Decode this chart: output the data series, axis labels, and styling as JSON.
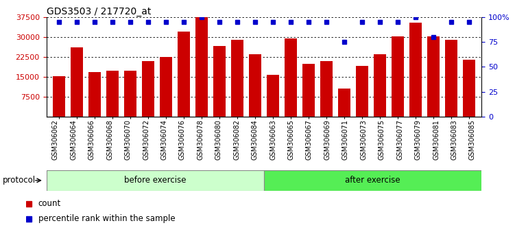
{
  "title": "GDS3503 / 217720_at",
  "categories": [
    "GSM306062",
    "GSM306064",
    "GSM306066",
    "GSM306068",
    "GSM306070",
    "GSM306072",
    "GSM306074",
    "GSM306076",
    "GSM306078",
    "GSM306080",
    "GSM306082",
    "GSM306084",
    "GSM306063",
    "GSM306065",
    "GSM306067",
    "GSM306069",
    "GSM306071",
    "GSM306073",
    "GSM306075",
    "GSM306077",
    "GSM306079",
    "GSM306081",
    "GSM306083",
    "GSM306085"
  ],
  "bar_values": [
    15200,
    26000,
    16800,
    17200,
    17400,
    21000,
    22500,
    32000,
    37500,
    26500,
    29000,
    23500,
    15800,
    29500,
    19800,
    20800,
    10500,
    19000,
    23500,
    30200,
    35500,
    30200,
    29000,
    21500
  ],
  "percentile_values": [
    95,
    95,
    95,
    95,
    95,
    95,
    95,
    95,
    100,
    95,
    95,
    95,
    95,
    95,
    95,
    95,
    75,
    95,
    95,
    95,
    100,
    80,
    95,
    95
  ],
  "before_count": 12,
  "after_count": 12,
  "before_label": "before exercise",
  "after_label": "after exercise",
  "protocol_label": "protocol",
  "bar_color": "#cc0000",
  "percentile_color": "#0000cc",
  "ylim_left": [
    0,
    37500
  ],
  "yticks_left": [
    7500,
    15000,
    22500,
    30000,
    37500
  ],
  "ylim_right": [
    0,
    100
  ],
  "yticks_right": [
    0,
    25,
    50,
    75,
    100
  ],
  "grid_values": [
    7500,
    15000,
    22500,
    30000
  ],
  "before_color": "#ccffcc",
  "after_color": "#55ee55",
  "legend_count_label": "count",
  "legend_percentile_label": "percentile rank within the sample"
}
